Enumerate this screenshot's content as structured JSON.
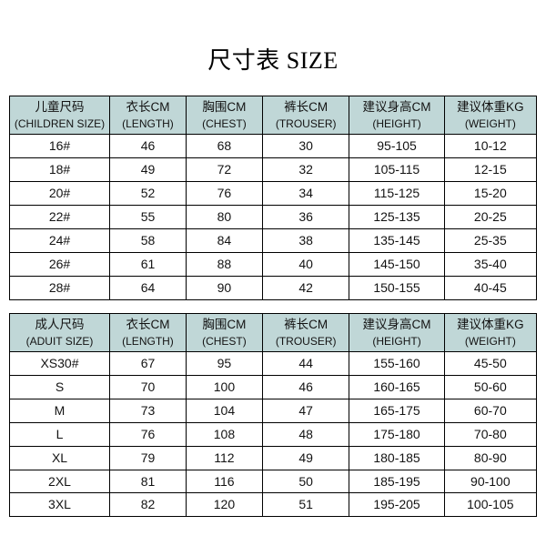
{
  "title": "尺寸表 SIZE",
  "colors": {
    "header_bg": "#c0d7d7",
    "border": "#000000",
    "text": "#131313",
    "bg": "#ffffff"
  },
  "columns": {
    "children_size": {
      "cn": "儿童尺码",
      "en": "(CHILDREN SIZE)"
    },
    "adult_size": {
      "cn": "成人尺码",
      "en": "(ADUIT SIZE)"
    },
    "length": {
      "cn": "衣长CM",
      "en": "(LENGTH)"
    },
    "chest": {
      "cn": "胸围CM",
      "en": "(CHEST)"
    },
    "trouser": {
      "cn": "裤长CM",
      "en": "(TROUSER)"
    },
    "height": {
      "cn": "建议身高CM",
      "en": "(HEIGHT)"
    },
    "weight": {
      "cn": "建议体重KG",
      "en": "(WEIGHT)"
    }
  },
  "children_rows": [
    {
      "size": "16#",
      "length": "46",
      "chest": "68",
      "trouser": "30",
      "height": "95-105",
      "weight": "10-12"
    },
    {
      "size": "18#",
      "length": "49",
      "chest": "72",
      "trouser": "32",
      "height": "105-115",
      "weight": "12-15"
    },
    {
      "size": "20#",
      "length": "52",
      "chest": "76",
      "trouser": "34",
      "height": "115-125",
      "weight": "15-20"
    },
    {
      "size": "22#",
      "length": "55",
      "chest": "80",
      "trouser": "36",
      "height": "125-135",
      "weight": "20-25"
    },
    {
      "size": "24#",
      "length": "58",
      "chest": "84",
      "trouser": "38",
      "height": "135-145",
      "weight": "25-35"
    },
    {
      "size": "26#",
      "length": "61",
      "chest": "88",
      "trouser": "40",
      "height": "145-150",
      "weight": "35-40"
    },
    {
      "size": "28#",
      "length": "64",
      "chest": "90",
      "trouser": "42",
      "height": "150-155",
      "weight": "40-45"
    }
  ],
  "adult_rows": [
    {
      "size": "XS30#",
      "length": "67",
      "chest": "95",
      "trouser": "44",
      "height": "155-160",
      "weight": "45-50"
    },
    {
      "size": "S",
      "length": "70",
      "chest": "100",
      "trouser": "46",
      "height": "160-165",
      "weight": "50-60"
    },
    {
      "size": "M",
      "length": "73",
      "chest": "104",
      "trouser": "47",
      "height": "165-175",
      "weight": "60-70"
    },
    {
      "size": "L",
      "length": "76",
      "chest": "108",
      "trouser": "48",
      "height": "175-180",
      "weight": "70-80"
    },
    {
      "size": "XL",
      "length": "79",
      "chest": "112",
      "trouser": "49",
      "height": "180-185",
      "weight": "80-90"
    },
    {
      "size": "2XL",
      "length": "81",
      "chest": "116",
      "trouser": "50",
      "height": "185-195",
      "weight": "90-100"
    },
    {
      "size": "3XL",
      "length": "82",
      "chest": "120",
      "trouser": "51",
      "height": "195-205",
      "weight": "100-105"
    }
  ]
}
